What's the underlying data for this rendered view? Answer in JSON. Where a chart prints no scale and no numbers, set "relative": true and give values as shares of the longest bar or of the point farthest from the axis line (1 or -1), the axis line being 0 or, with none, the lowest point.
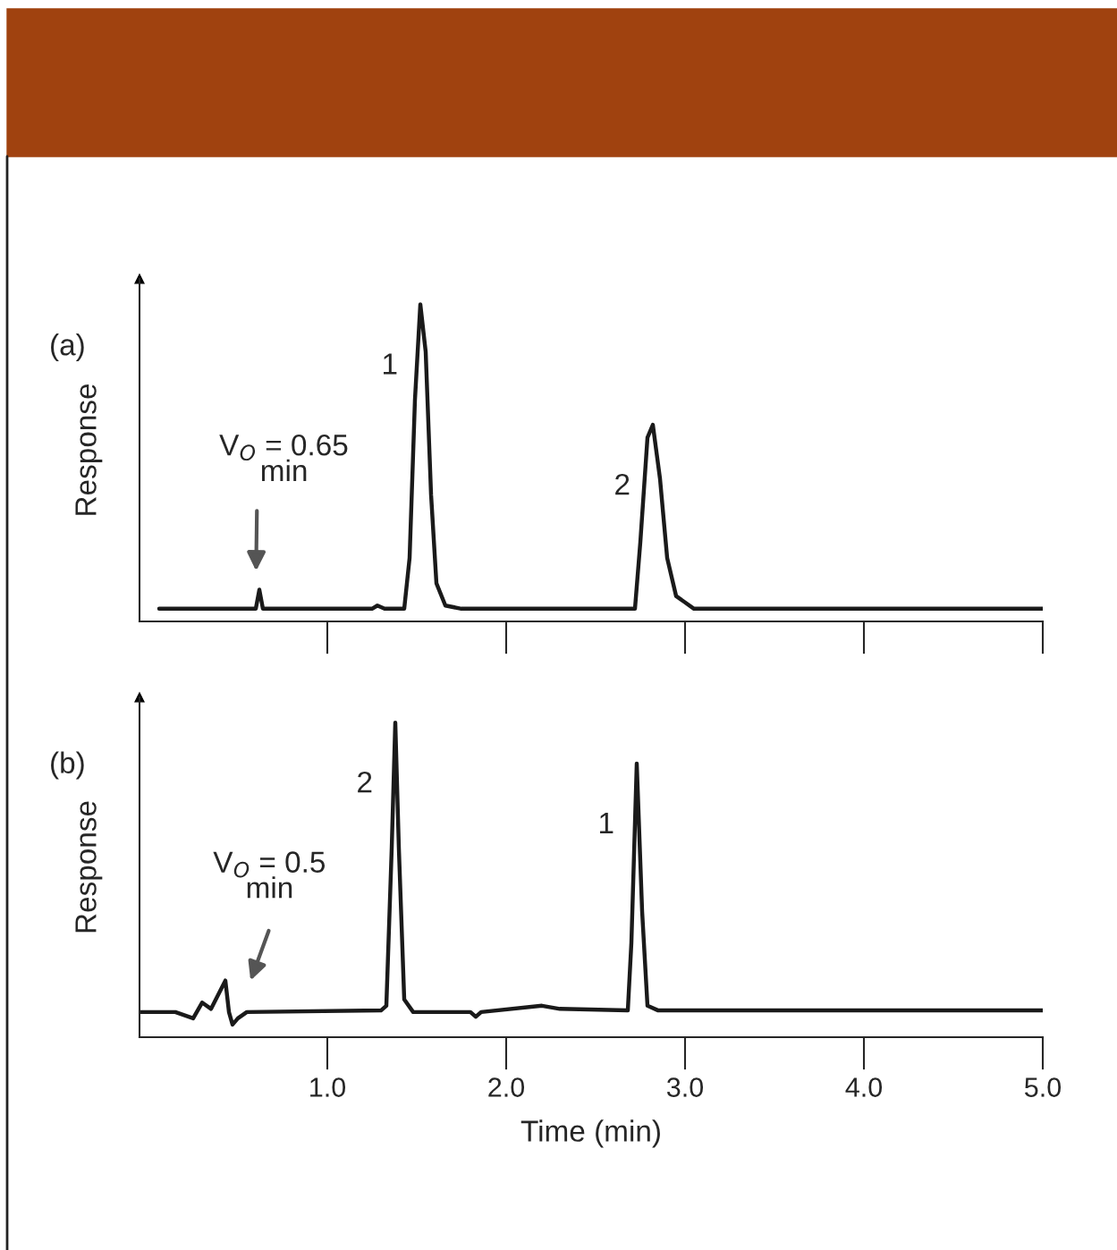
{
  "chart_data": [
    {
      "type": "line",
      "relative": true,
      "ylabel": "Response",
      "xlim": [
        -0.05,
        5.0
      ],
      "tick_labels": false,
      "grid": false,
      "legend": false,
      "marker": "none",
      "line_style": "solid",
      "xticks": [
        {
          "value": 1.0,
          "label": null
        },
        {
          "value": 2.0,
          "label": null
        },
        {
          "value": 3.0,
          "label": null
        },
        {
          "value": 4.0,
          "label": null
        },
        {
          "value": 5.0,
          "label": null
        }
      ],
      "series": [
        {
          "color": "#1a1a1a",
          "x": [
            0.06,
            0.55,
            0.6,
            0.62,
            0.64,
            1.0,
            1.25,
            1.28,
            1.32,
            1.43,
            1.46,
            1.49,
            1.52,
            1.55,
            1.58,
            1.61,
            1.66,
            1.75,
            2.5,
            2.72,
            2.75,
            2.79,
            2.82,
            2.86,
            2.9,
            2.95,
            3.05,
            5.0
          ],
          "values": [
            0.04,
            0.04,
            0.04,
            0.1,
            0.04,
            0.04,
            0.04,
            0.05,
            0.04,
            0.04,
            0.2,
            0.7,
            1.0,
            0.85,
            0.4,
            0.12,
            0.05,
            0.04,
            0.04,
            0.04,
            0.25,
            0.58,
            0.62,
            0.45,
            0.2,
            0.08,
            0.04,
            0.04
          ]
        }
      ],
      "annotations": [
        "(a)",
        {
          "text": "1",
          "x": 1.52,
          "y": 1.0
        },
        {
          "text": "2",
          "x": 2.82,
          "y": 0.62
        },
        "V$_{O}$ = 0.65\nmin"
      ]
    },
    {
      "type": "line",
      "relative": true,
      "ylabel": "Response",
      "xlabel": "Time (min)",
      "xlim": [
        -0.05,
        5.0
      ],
      "tick_labels": "x",
      "grid": false,
      "legend": false,
      "marker": "none",
      "line_style": "solid",
      "xticks": [
        {
          "value": 1.0,
          "label": "1.0"
        },
        {
          "value": 2.0,
          "label": "2.0"
        },
        {
          "value": 3.0,
          "label": "3.0"
        },
        {
          "value": 4.0,
          "label": "4.0"
        },
        {
          "value": 5.0,
          "label": "5.0"
        }
      ],
      "series": [
        {
          "color": "#1a1a1a",
          "x": [
            -0.05,
            0.15,
            0.25,
            0.3,
            0.35,
            0.43,
            0.45,
            0.47,
            0.5,
            0.55,
            1.3,
            1.33,
            1.36,
            1.38,
            1.4,
            1.43,
            1.48,
            1.8,
            1.83,
            1.86,
            2.2,
            2.3,
            2.68,
            2.7,
            2.73,
            2.76,
            2.79,
            2.85,
            5.0
          ],
          "values": [
            0.08,
            0.08,
            0.06,
            0.11,
            0.09,
            0.18,
            0.08,
            0.04,
            0.06,
            0.08,
            0.085,
            0.1,
            0.6,
            1.0,
            0.6,
            0.12,
            0.08,
            0.08,
            0.065,
            0.08,
            0.1,
            0.09,
            0.085,
            0.3,
            0.87,
            0.4,
            0.1,
            0.085,
            0.085
          ]
        }
      ],
      "annotations": [
        "(b)",
        {
          "text": "2",
          "x": 1.38,
          "y": 1.0
        },
        {
          "text": "1",
          "x": 2.73,
          "y": 0.87
        },
        "V$_{O}$ = 0.5\nmin"
      ]
    }
  ]
}
